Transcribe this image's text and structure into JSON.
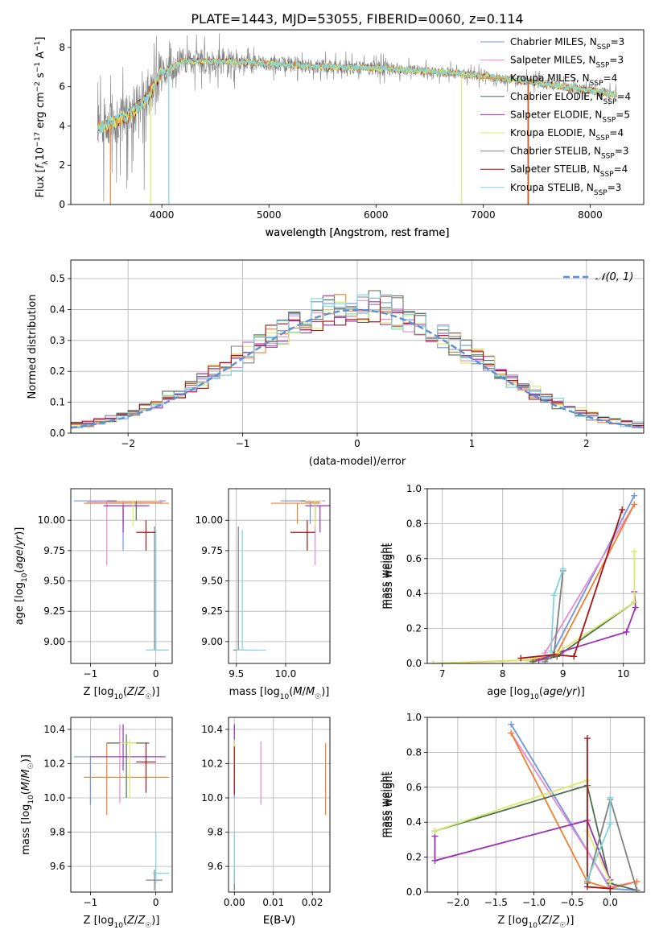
{
  "figure_title": "PLATE=1443, MJD=53055, FIBERID=0060, z=0.114",
  "colors": {
    "chabrier_miles": "#6f96e0",
    "salpeter_miles": "#e68ad0",
    "kroupa_miles": "#f07f2c",
    "chabrier_elodie": "#4e6e52",
    "salpeter_elodie": "#9b2fb5",
    "kroupa_elodie": "#d8ec6a",
    "chabrier_stelib": "#808080",
    "salpeter_stelib": "#a51313",
    "kroupa_stelib": "#7fd3dd",
    "gaussian": "#5b8fd6"
  },
  "chart_data": [
    {
      "id": "spectrum",
      "type": "line",
      "title": "PLATE=1443, MJD=53055, FIBERID=0060, z=0.114",
      "xlabel": "wavelength [Angstrom, rest frame]",
      "ylabel": "Flux [f_λ 10^-17 erg cm^-2 s^-1 A^-1]",
      "xlim": [
        3150,
        8500
      ],
      "ylim": [
        0,
        8.9
      ],
      "xticks": [
        4000,
        5000,
        6000,
        7000,
        8000
      ],
      "yticks": [
        0,
        2,
        4,
        6,
        8
      ],
      "grid": false,
      "legend": "top-right",
      "legend_entries": [
        {
          "base": "Chabrier MILES, N",
          "sub": "SSP",
          "tail": "=3",
          "color": "chabrier_miles"
        },
        {
          "base": "Salpeter MILES, N",
          "sub": "SSP",
          "tail": "=3",
          "color": "salpeter_miles"
        },
        {
          "base": "Kroupa MILES, N",
          "sub": "SSP",
          "tail": "=4",
          "color": "kroupa_miles"
        },
        {
          "base": "Chabrier ELODIE, N",
          "sub": "SSP",
          "tail": "=4",
          "color": "chabrier_elodie"
        },
        {
          "base": "Salpeter ELODIE, N",
          "sub": "SSP",
          "tail": "=5",
          "color": "salpeter_elodie"
        },
        {
          "base": "Kroupa ELODIE, N",
          "sub": "SSP",
          "tail": "=4",
          "color": "kroupa_elodie"
        },
        {
          "base": "Chabrier STELIB, N",
          "sub": "SSP",
          "tail": "=3",
          "color": "chabrier_stelib"
        },
        {
          "base": "Salpeter STELIB, N",
          "sub": "SSP",
          "tail": "=4",
          "color": "salpeter_stelib"
        },
        {
          "base": "Kroupa STELIB, N",
          "sub": "SSP",
          "tail": "=3",
          "color": "kroupa_stelib"
        }
      ],
      "continuum": {
        "x": [
          3400,
          3550,
          3700,
          3850,
          4000,
          4200,
          4500,
          4800,
          5100,
          5400,
          5700,
          6000,
          6300,
          6600,
          6900,
          7200,
          7500,
          7800,
          8000,
          8250
        ],
        "y": [
          3.9,
          4.2,
          4.6,
          5.3,
          6.7,
          7.3,
          7.3,
          7.25,
          7.15,
          7.05,
          7.0,
          6.95,
          6.85,
          6.75,
          6.6,
          6.4,
          6.2,
          5.95,
          5.8,
          5.6
        ]
      },
      "drops": [
        {
          "series": "kroupa_miles",
          "x": 3520
        },
        {
          "series": "kroupa_elodie",
          "x": 3895
        },
        {
          "series": "kroupa_stelib",
          "x": 4065
        },
        {
          "series": "kroupa_elodie",
          "x": 6800
        },
        {
          "series": "salpeter_stelib",
          "x": 7420
        },
        {
          "series": "kroupa_miles",
          "x": 7425
        }
      ]
    },
    {
      "id": "residuals",
      "type": "step-histogram",
      "xlabel": "(data-model)/error",
      "ylabel": "Normed distribution",
      "xlim": [
        -2.5,
        2.5
      ],
      "ylim": [
        0,
        0.56
      ],
      "xticks": [
        -2,
        -1,
        0,
        1,
        2
      ],
      "yticks": [
        0.0,
        0.1,
        0.2,
        0.3,
        0.4,
        0.5
      ],
      "grid": true,
      "legend": "top-right",
      "legend_label": "𝒩(0, 1)",
      "bin_width": 0.1,
      "reference_curve": "normal(0,1)",
      "series": [
        {
          "name": "Chabrier MILES, NSSP=3",
          "color": "chabrier_miles",
          "seed": 11
        },
        {
          "name": "Salpeter MILES, NSSP=3",
          "color": "salpeter_miles",
          "seed": 23
        },
        {
          "name": "Kroupa MILES, NSSP=4",
          "color": "kroupa_miles",
          "seed": 37
        },
        {
          "name": "Chabrier ELODIE, NSSP=4",
          "color": "chabrier_elodie",
          "seed": 41
        },
        {
          "name": "Salpeter ELODIE, NSSP=5",
          "color": "salpeter_elodie",
          "seed": 53
        },
        {
          "name": "Kroupa ELODIE, NSSP=4",
          "color": "kroupa_elodie",
          "seed": 67
        },
        {
          "name": "Chabrier STELIB, NSSP=3",
          "color": "chabrier_stelib",
          "seed": 71
        },
        {
          "name": "Salpeter STELIB, NSSP=4",
          "color": "salpeter_stelib",
          "seed": 83
        },
        {
          "name": "Kroupa STELIB, NSSP=3",
          "color": "kroupa_stelib",
          "seed": 97
        }
      ]
    },
    {
      "id": "age_vs_Z",
      "type": "errorbar",
      "xlabel": "Z [log10(Z/Z☉)]",
      "ylabel": "age  [log10(age/yr)]",
      "xlim": [
        -1.3,
        0.25
      ],
      "ylim": [
        8.82,
        10.26
      ],
      "xticks": [
        -1,
        0
      ],
      "yticks": [
        9.0,
        9.25,
        9.5,
        9.75,
        10.0
      ],
      "ytick_labels": [
        "9.00",
        "9.25",
        "9.50",
        "9.75",
        "10.00"
      ],
      "grid": true,
      "points": [
        {
          "color": "chabrier_miles",
          "x": -0.5,
          "y": 10.16,
          "x0": -1.25,
          "x1": 0.15,
          "y0": 9.75,
          "y1": 10.16
        },
        {
          "color": "salpeter_miles",
          "x": -0.75,
          "y": 10.15,
          "x0": -1.05,
          "x1": 0.1,
          "y0": 9.63,
          "y1": 10.15
        },
        {
          "color": "kroupa_miles",
          "x": -0.5,
          "y": 10.14,
          "x0": -1.1,
          "x1": 0.2,
          "y0": 9.97,
          "y1": 10.14
        },
        {
          "color": "chabrier_elodie",
          "x": -0.3,
          "y": 10.16,
          "x0": -0.75,
          "x1": 0.0,
          "y0": 10.0,
          "y1": 10.16
        },
        {
          "color": "salpeter_elodie",
          "x": -0.5,
          "y": 10.12,
          "x0": -0.8,
          "x1": -0.1,
          "y0": 9.9,
          "y1": 10.12
        },
        {
          "color": "kroupa_elodie",
          "x": -0.35,
          "y": 10.16,
          "x0": -0.6,
          "x1": 0.05,
          "y0": 9.95,
          "y1": 10.16
        },
        {
          "color": "chabrier_stelib",
          "x": -0.02,
          "y": 8.93,
          "x0": -0.15,
          "x1": 0.18,
          "y0": 8.93,
          "y1": 9.95
        },
        {
          "color": "salpeter_stelib",
          "x": -0.15,
          "y": 9.9,
          "x0": -0.3,
          "x1": 0.0,
          "y0": 9.75,
          "y1": 10.0
        },
        {
          "color": "kroupa_stelib",
          "x": 0.0,
          "y": 8.93,
          "x0": -0.15,
          "x1": 0.2,
          "y0": 8.93,
          "y1": 9.92
        }
      ]
    },
    {
      "id": "age_vs_mass",
      "type": "errorbar",
      "xlabel": "mass [log10(M/M☉)]",
      "ylabel": "",
      "xlim": [
        9.42,
        10.45
      ],
      "ylim": [
        8.82,
        10.26
      ],
      "xticks": [
        9.5,
        10.0
      ],
      "xtick_labels": [
        "9.5",
        "10.0"
      ],
      "yticks": [
        9.0,
        9.25,
        9.5,
        9.75,
        10.0
      ],
      "ytick_labels": [
        "9.00",
        "9.25",
        "9.50",
        "9.75",
        "10.00"
      ],
      "grid": true,
      "points": [
        {
          "color": "chabrier_miles",
          "x": 10.25,
          "y": 10.16,
          "x0": 9.95,
          "x1": 10.4,
          "y0": 9.97,
          "y1": 10.16
        },
        {
          "color": "salpeter_miles",
          "x": 10.3,
          "y": 10.15,
          "x0": 10.2,
          "x1": 10.35,
          "y0": 9.63,
          "y1": 10.15
        },
        {
          "color": "kroupa_miles",
          "x": 10.12,
          "y": 10.14,
          "x0": 9.85,
          "x1": 10.35,
          "y0": 9.97,
          "y1": 10.14
        },
        {
          "color": "chabrier_elodie",
          "x": 10.3,
          "y": 10.16,
          "x0": 10.15,
          "x1": 10.35,
          "y0": 10.0,
          "y1": 10.16
        },
        {
          "color": "salpeter_elodie",
          "x": 10.35,
          "y": 10.12,
          "x0": 10.2,
          "x1": 10.45,
          "y0": 9.9,
          "y1": 10.12
        },
        {
          "color": "kroupa_elodie",
          "x": 10.3,
          "y": 10.16,
          "x0": 10.2,
          "x1": 10.38,
          "y0": 9.95,
          "y1": 10.16
        },
        {
          "color": "chabrier_stelib",
          "x": 9.52,
          "y": 8.93,
          "x0": 9.47,
          "x1": 9.6,
          "y0": 8.93,
          "y1": 9.95
        },
        {
          "color": "salpeter_stelib",
          "x": 10.22,
          "y": 9.9,
          "x0": 10.05,
          "x1": 10.3,
          "y0": 9.75,
          "y1": 10.0
        },
        {
          "color": "kroupa_stelib",
          "x": 9.56,
          "y": 8.93,
          "x0": 9.5,
          "x1": 9.8,
          "y0": 8.93,
          "y1": 9.92
        }
      ]
    },
    {
      "id": "mass_weight_vs_age",
      "type": "line",
      "xlabel": "age  [log10(age/yr)]",
      "ylabel": "mass weight",
      "xlim": [
        6.75,
        10.35
      ],
      "ylim": [
        0,
        1.0
      ],
      "xticks": [
        7,
        8,
        9,
        10
      ],
      "yticks": [
        0.0,
        0.2,
        0.4,
        0.6,
        0.8,
        1.0
      ],
      "grid": true,
      "series": [
        {
          "color": "chabrier_miles",
          "x": [
            8.8,
            10.18
          ],
          "y": [
            0.04,
            0.96
          ]
        },
        {
          "color": "salpeter_miles",
          "x": [
            8.7,
            10.18
          ],
          "y": [
            0.06,
            0.91
          ]
        },
        {
          "color": "kroupa_miles",
          "x": [
            6.85,
            8.5,
            8.9,
            10.18
          ],
          "y": [
            0.0,
            0.02,
            0.06,
            0.91
          ]
        },
        {
          "color": "chabrier_elodie",
          "x": [
            8.5,
            8.9,
            10.18
          ],
          "y": [
            0.01,
            0.04,
            0.35
          ]
        },
        {
          "color": "salpeter_elodie",
          "x": [
            8.6,
            9.0,
            10.05,
            10.2,
            10.18
          ],
          "y": [
            0.02,
            0.07,
            0.18,
            0.32,
            0.41
          ]
        },
        {
          "color": "kroupa_elodie",
          "x": [
            6.85,
            8.4,
            8.9,
            10.18,
            10.18
          ],
          "y": [
            0.0,
            0.02,
            0.06,
            0.35,
            0.64
          ]
        },
        {
          "color": "chabrier_stelib",
          "x": [
            8.7,
            8.85,
            9.0
          ],
          "y": [
            0.01,
            0.05,
            0.53
          ]
        },
        {
          "color": "salpeter_stelib",
          "x": [
            8.3,
            8.85,
            9.18,
            9.98
          ],
          "y": [
            0.03,
            0.05,
            0.04,
            0.88
          ]
        },
        {
          "color": "kroupa_stelib",
          "x": [
            8.8,
            8.85,
            9.0
          ],
          "y": [
            0.07,
            0.39,
            0.54
          ]
        }
      ]
    },
    {
      "id": "mass_vs_Z",
      "type": "errorbar",
      "xlabel": "Z [log10(Z/Z☉)]",
      "ylabel": "mass [log10(M/M☉)]",
      "xlim": [
        -1.3,
        0.25
      ],
      "ylim": [
        9.45,
        10.47
      ],
      "xticks": [
        -1,
        0
      ],
      "yticks": [
        9.6,
        9.8,
        10.0,
        10.2,
        10.4
      ],
      "ytick_labels": [
        "9.6",
        "9.8",
        "10.0",
        "10.2",
        "10.4"
      ],
      "grid": true,
      "points": [
        {
          "color": "chabrier_miles",
          "x": -1.0,
          "y": 10.24,
          "x0": -1.25,
          "x1": 0.1,
          "y0": 9.96,
          "y1": 10.24
        },
        {
          "color": "salpeter_miles",
          "x": -0.55,
          "y": 10.24,
          "x0": -0.65,
          "x1": -0.45,
          "y0": 9.97,
          "y1": 10.43
        },
        {
          "color": "kroupa_miles",
          "x": -0.75,
          "y": 10.12,
          "x0": -1.1,
          "x1": 0.2,
          "y0": 9.9,
          "y1": 10.32
        },
        {
          "color": "chabrier_elodie",
          "x": -0.45,
          "y": 10.32,
          "x0": -0.75,
          "x1": -0.1,
          "y0": 10.0,
          "y1": 10.37
        },
        {
          "color": "salpeter_elodie",
          "x": -0.5,
          "y": 10.24,
          "x0": -1.0,
          "x1": 0.15,
          "y0": 10.16,
          "y1": 10.43
        },
        {
          "color": "kroupa_elodie",
          "x": -0.4,
          "y": 10.32,
          "x0": -0.55,
          "x1": -0.3,
          "y0": 10.0,
          "y1": 10.34
        },
        {
          "color": "chabrier_stelib",
          "x": -0.02,
          "y": 9.52,
          "x0": -0.15,
          "x1": 0.1,
          "y0": 9.46,
          "y1": 9.58
        },
        {
          "color": "salpeter_stelib",
          "x": -0.15,
          "y": 10.21,
          "x0": -0.3,
          "x1": 0.0,
          "y0": 10.03,
          "y1": 10.32
        },
        {
          "color": "kroupa_stelib",
          "x": 0.0,
          "y": 9.56,
          "x0": -0.05,
          "x1": 0.2,
          "y0": 9.5,
          "y1": 9.8
        }
      ]
    },
    {
      "id": "mass_vs_ebv",
      "type": "errorbar",
      "xlabel": "E(B-V)",
      "ylabel": "",
      "xlim": [
        -0.0015,
        0.0245
      ],
      "ylim": [
        9.45,
        10.47
      ],
      "xticks": [
        0.0,
        0.01,
        0.02
      ],
      "xtick_labels": [
        "0.00",
        "0.01",
        "0.02"
      ],
      "yticks": [
        9.6,
        9.8,
        10.0,
        10.2,
        10.4
      ],
      "ytick_labels": [
        "9.6",
        "9.8",
        "10.0",
        "10.2",
        "10.4"
      ],
      "grid": true,
      "points": [
        {
          "color": "chabrier_miles",
          "x": 0.0,
          "y": 10.24,
          "x0": 0.0,
          "x1": 0.0,
          "y0": 10.0,
          "y1": 10.3
        },
        {
          "color": "salpeter_miles",
          "x": 0.0068,
          "y": 10.15,
          "x0": 0.0068,
          "x1": 0.0068,
          "y0": 9.96,
          "y1": 10.33
        },
        {
          "color": "kroupa_miles",
          "x": 0.0234,
          "y": 10.12,
          "x0": 0.0234,
          "x1": 0.0234,
          "y0": 9.9,
          "y1": 10.32
        },
        {
          "color": "chabrier_elodie",
          "x": 0.0,
          "y": 10.3,
          "x0": 0.0,
          "x1": 0.0,
          "y0": 10.1,
          "y1": 10.34
        },
        {
          "color": "salpeter_elodie",
          "x": 0.0,
          "y": 10.38,
          "x0": 0.0,
          "x1": 0.0,
          "y0": 10.33,
          "y1": 10.43
        },
        {
          "color": "kroupa_elodie",
          "x": 0.0,
          "y": 10.3,
          "x0": 0.0,
          "x1": 0.0,
          "y0": 10.1,
          "y1": 10.34
        },
        {
          "color": "chabrier_stelib",
          "x": 0.0,
          "y": 9.52,
          "x0": 0.0,
          "x1": 0.0,
          "y0": 9.46,
          "y1": 9.58
        },
        {
          "color": "salpeter_stelib",
          "x": 0.0,
          "y": 10.2,
          "x0": 0.0,
          "x1": 0.0,
          "y0": 10.02,
          "y1": 10.3
        },
        {
          "color": "kroupa_stelib",
          "x": 0.0,
          "y": 9.56,
          "x0": 0.0,
          "x1": 0.0,
          "y0": 9.5,
          "y1": 9.8
        }
      ]
    },
    {
      "id": "mass_weight_vs_Z",
      "type": "line",
      "xlabel": "Z [log10(Z/Z☉)]",
      "ylabel": "mass weight",
      "xlim": [
        -2.4,
        0.45
      ],
      "ylim": [
        0,
        1.0
      ],
      "xticks": [
        -2.0,
        -1.5,
        -1.0,
        -0.5,
        0.0
      ],
      "xtick_labels": [
        "−2.0",
        "−1.5",
        "−1.0",
        "−0.5",
        "0.0"
      ],
      "yticks": [
        0.0,
        0.2,
        0.4,
        0.6,
        0.8,
        1.0
      ],
      "grid": true,
      "series": [
        {
          "color": "chabrier_miles",
          "x": [
            -1.3,
            0.0,
            0.35
          ],
          "y": [
            0.96,
            0.02,
            0.01
          ]
        },
        {
          "color": "salpeter_miles",
          "x": [
            -1.3,
            0.0,
            0.35
          ],
          "y": [
            0.91,
            0.03,
            0.06
          ]
        },
        {
          "color": "kroupa_miles",
          "x": [
            -1.3,
            -0.3,
            0.0,
            0.35
          ],
          "y": [
            0.91,
            0.06,
            0.02,
            0.06
          ]
        },
        {
          "color": "chabrier_elodie",
          "x": [
            -2.3,
            -0.3,
            0.0,
            0.35
          ],
          "y": [
            0.35,
            0.61,
            0.05,
            0.01
          ]
        },
        {
          "color": "salpeter_elodie",
          "x": [
            -2.3,
            -2.3,
            -0.3,
            0.0,
            0.0
          ],
          "y": [
            0.32,
            0.18,
            0.41,
            0.07,
            0.02
          ]
        },
        {
          "color": "kroupa_elodie",
          "x": [
            -2.3,
            -0.3,
            -0.3,
            0.0,
            0.0
          ],
          "y": [
            0.35,
            0.64,
            0.35,
            0.06,
            0.02
          ]
        },
        {
          "color": "chabrier_stelib",
          "x": [
            -0.3,
            0.0,
            0.35
          ],
          "y": [
            0.05,
            0.53,
            0.01
          ]
        },
        {
          "color": "salpeter_stelib",
          "x": [
            -0.3,
            -0.3,
            0.0
          ],
          "y": [
            0.88,
            0.03,
            0.02
          ]
        },
        {
          "color": "kroupa_stelib",
          "x": [
            -0.3,
            0.0,
            0.0
          ],
          "y": [
            0.07,
            0.39,
            0.54
          ]
        }
      ]
    }
  ]
}
